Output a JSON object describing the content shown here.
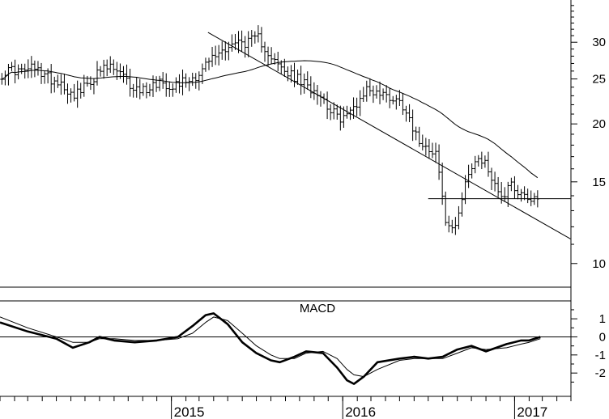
{
  "chart_data": [
    {
      "type": "ohlc",
      "y_scale": "log",
      "ylim": [
        9,
        37
      ],
      "y_ticks": [
        10,
        15,
        20,
        25,
        30
      ],
      "x_range": [
        "2014-01-01",
        "2017-05-01"
      ],
      "x_year_ticks": [
        {
          "date": "2015-01-01",
          "label": "2015"
        },
        {
          "date": "2016-01-01",
          "label": "2016"
        },
        {
          "date": "2017-01-01",
          "label": "2017"
        }
      ],
      "weekly_close": [
        {
          "date": "2014-01-05",
          "close": 25.6
        },
        {
          "date": "2014-01-26",
          "close": 26.2
        },
        {
          "date": "2014-02-16",
          "close": 25.9
        },
        {
          "date": "2014-03-09",
          "close": 26.4
        },
        {
          "date": "2014-03-30",
          "close": 25.8
        },
        {
          "date": "2014-04-20",
          "close": 25.0
        },
        {
          "date": "2014-05-11",
          "close": 24.6
        },
        {
          "date": "2014-06-01",
          "close": 23.2
        },
        {
          "date": "2014-06-22",
          "close": 23.5
        },
        {
          "date": "2014-07-13",
          "close": 24.8
        },
        {
          "date": "2014-08-03",
          "close": 26.0
        },
        {
          "date": "2014-08-24",
          "close": 26.5
        },
        {
          "date": "2014-09-14",
          "close": 25.6
        },
        {
          "date": "2014-10-05",
          "close": 24.2
        },
        {
          "date": "2014-10-26",
          "close": 23.6
        },
        {
          "date": "2014-11-16",
          "close": 24.0
        },
        {
          "date": "2014-12-07",
          "close": 24.8
        },
        {
          "date": "2014-12-28",
          "close": 24.2
        },
        {
          "date": "2015-01-18",
          "close": 24.6
        },
        {
          "date": "2015-02-08",
          "close": 25.0
        },
        {
          "date": "2015-03-01",
          "close": 25.6
        },
        {
          "date": "2015-03-22",
          "close": 27.4
        },
        {
          "date": "2015-04-12",
          "close": 28.4
        },
        {
          "date": "2015-05-03",
          "close": 29.6
        },
        {
          "date": "2015-05-24",
          "close": 30.0
        },
        {
          "date": "2015-06-14",
          "close": 30.0
        },
        {
          "date": "2015-07-05",
          "close": 30.6
        },
        {
          "date": "2015-07-26",
          "close": 28.6
        },
        {
          "date": "2015-08-16",
          "close": 26.6
        },
        {
          "date": "2015-09-06",
          "close": 25.6
        },
        {
          "date": "2015-09-27",
          "close": 25.0
        },
        {
          "date": "2015-10-18",
          "close": 24.0
        },
        {
          "date": "2015-11-08",
          "close": 23.6
        },
        {
          "date": "2015-11-29",
          "close": 22.0
        },
        {
          "date": "2015-12-20",
          "close": 20.6
        },
        {
          "date": "2016-01-10",
          "close": 20.8
        },
        {
          "date": "2016-01-31",
          "close": 22.2
        },
        {
          "date": "2016-02-21",
          "close": 23.8
        },
        {
          "date": "2016-03-13",
          "close": 23.4
        },
        {
          "date": "2016-04-03",
          "close": 23.0
        },
        {
          "date": "2016-04-24",
          "close": 22.6
        },
        {
          "date": "2016-05-15",
          "close": 21.6
        },
        {
          "date": "2016-06-05",
          "close": 18.8
        },
        {
          "date": "2016-06-26",
          "close": 18.0
        },
        {
          "date": "2016-07-17",
          "close": 17.4
        },
        {
          "date": "2016-08-07",
          "close": 12.2
        },
        {
          "date": "2016-08-28",
          "close": 11.8
        },
        {
          "date": "2016-09-18",
          "close": 15.2
        },
        {
          "date": "2016-10-09",
          "close": 16.4
        },
        {
          "date": "2016-10-30",
          "close": 16.6
        },
        {
          "date": "2016-11-20",
          "close": 14.6
        },
        {
          "date": "2016-12-11",
          "close": 14.0
        },
        {
          "date": "2016-12-20",
          "close": 15.0
        }
      ],
      "series": [
        {
          "name": "",
          "style": "thin"
        },
        {
          "name": "",
          "style": "thin"
        }
      ],
      "trendlines": [
        {
          "from": {
            "date": "2015-03-20",
            "value": 31.5
          },
          "to": {
            "date": "2017-04-30",
            "value": 11.3
          }
        },
        {
          "from": {
            "date": "2016-07-01",
            "value": 13.8
          },
          "to": {
            "date": "2017-04-30",
            "value": 13.8
          }
        }
      ]
    },
    {
      "type": "line",
      "title": "MACD",
      "ylim": [
        -3.2,
        1.9
      ],
      "y_ticks": [
        -2,
        -1,
        0,
        1
      ],
      "zero_line": true,
      "series": [
        {
          "name": "",
          "style": "thick",
          "points": [
            {
              "date": "2014-01-01",
              "value": 0.8
            },
            {
              "date": "2014-03-01",
              "value": 0.3
            },
            {
              "date": "2014-05-01",
              "value": -0.1
            },
            {
              "date": "2014-06-05",
              "value": -0.6
            },
            {
              "date": "2014-07-10",
              "value": -0.3
            },
            {
              "date": "2014-08-01",
              "value": 0.0
            },
            {
              "date": "2014-09-01",
              "value": -0.2
            },
            {
              "date": "2014-10-15",
              "value": -0.3
            },
            {
              "date": "2014-12-01",
              "value": -0.2
            },
            {
              "date": "2015-01-15",
              "value": 0.0
            },
            {
              "date": "2015-02-15",
              "value": 0.6
            },
            {
              "date": "2015-03-15",
              "value": 1.2
            },
            {
              "date": "2015-04-01",
              "value": 1.3
            },
            {
              "date": "2015-05-01",
              "value": 0.7
            },
            {
              "date": "2015-06-01",
              "value": -0.3
            },
            {
              "date": "2015-07-01",
              "value": -0.9
            },
            {
              "date": "2015-08-01",
              "value": -1.3
            },
            {
              "date": "2015-08-20",
              "value": -1.4
            },
            {
              "date": "2015-09-20",
              "value": -1.1
            },
            {
              "date": "2015-10-15",
              "value": -0.8
            },
            {
              "date": "2015-11-20",
              "value": -0.9
            },
            {
              "date": "2015-12-20",
              "value": -1.7
            },
            {
              "date": "2016-01-10",
              "value": -2.4
            },
            {
              "date": "2016-01-25",
              "value": -2.6
            },
            {
              "date": "2016-02-15",
              "value": -2.2
            },
            {
              "date": "2016-03-15",
              "value": -1.4
            },
            {
              "date": "2016-05-01",
              "value": -1.2
            },
            {
              "date": "2016-06-01",
              "value": -1.1
            },
            {
              "date": "2016-07-01",
              "value": -1.2
            },
            {
              "date": "2016-08-01",
              "value": -1.1
            },
            {
              "date": "2016-09-01",
              "value": -0.7
            },
            {
              "date": "2016-10-01",
              "value": -0.5
            },
            {
              "date": "2016-11-01",
              "value": -0.8
            },
            {
              "date": "2016-12-15",
              "value": -0.4
            },
            {
              "date": "2017-01-15",
              "value": -0.2
            },
            {
              "date": "2017-02-01",
              "value": -0.2
            },
            {
              "date": "2017-02-25",
              "value": 0.0
            }
          ]
        },
        {
          "name": "",
          "style": "thin",
          "points": [
            {
              "date": "2014-01-01",
              "value": 1.1
            },
            {
              "date": "2014-03-01",
              "value": 0.5
            },
            {
              "date": "2014-05-01",
              "value": 0.0
            },
            {
              "date": "2014-06-05",
              "value": -0.3
            },
            {
              "date": "2014-07-10",
              "value": -0.3
            },
            {
              "date": "2014-08-01",
              "value": -0.1
            },
            {
              "date": "2014-09-01",
              "value": -0.1
            },
            {
              "date": "2014-10-15",
              "value": -0.2
            },
            {
              "date": "2014-12-01",
              "value": -0.2
            },
            {
              "date": "2015-01-15",
              "value": -0.1
            },
            {
              "date": "2015-02-15",
              "value": 0.2
            },
            {
              "date": "2015-03-15",
              "value": 0.8
            },
            {
              "date": "2015-04-01",
              "value": 1.1
            },
            {
              "date": "2015-05-01",
              "value": 0.9
            },
            {
              "date": "2015-06-01",
              "value": 0.2
            },
            {
              "date": "2015-07-01",
              "value": -0.5
            },
            {
              "date": "2015-08-01",
              "value": -1.0
            },
            {
              "date": "2015-08-20",
              "value": -1.2
            },
            {
              "date": "2015-09-20",
              "value": -1.2
            },
            {
              "date": "2015-10-15",
              "value": -0.9
            },
            {
              "date": "2015-11-20",
              "value": -0.8
            },
            {
              "date": "2015-12-20",
              "value": -1.2
            },
            {
              "date": "2016-01-10",
              "value": -1.8
            },
            {
              "date": "2016-01-25",
              "value": -2.1
            },
            {
              "date": "2016-02-15",
              "value": -2.2
            },
            {
              "date": "2016-03-15",
              "value": -1.8
            },
            {
              "date": "2016-05-01",
              "value": -1.3
            },
            {
              "date": "2016-06-01",
              "value": -1.2
            },
            {
              "date": "2016-07-01",
              "value": -1.2
            },
            {
              "date": "2016-08-01",
              "value": -1.2
            },
            {
              "date": "2016-09-01",
              "value": -0.9
            },
            {
              "date": "2016-10-01",
              "value": -0.6
            },
            {
              "date": "2016-11-01",
              "value": -0.7
            },
            {
              "date": "2016-12-15",
              "value": -0.6
            },
            {
              "date": "2017-01-15",
              "value": -0.4
            },
            {
              "date": "2017-02-01",
              "value": -0.3
            },
            {
              "date": "2017-02-25",
              "value": -0.1
            }
          ]
        }
      ]
    }
  ]
}
